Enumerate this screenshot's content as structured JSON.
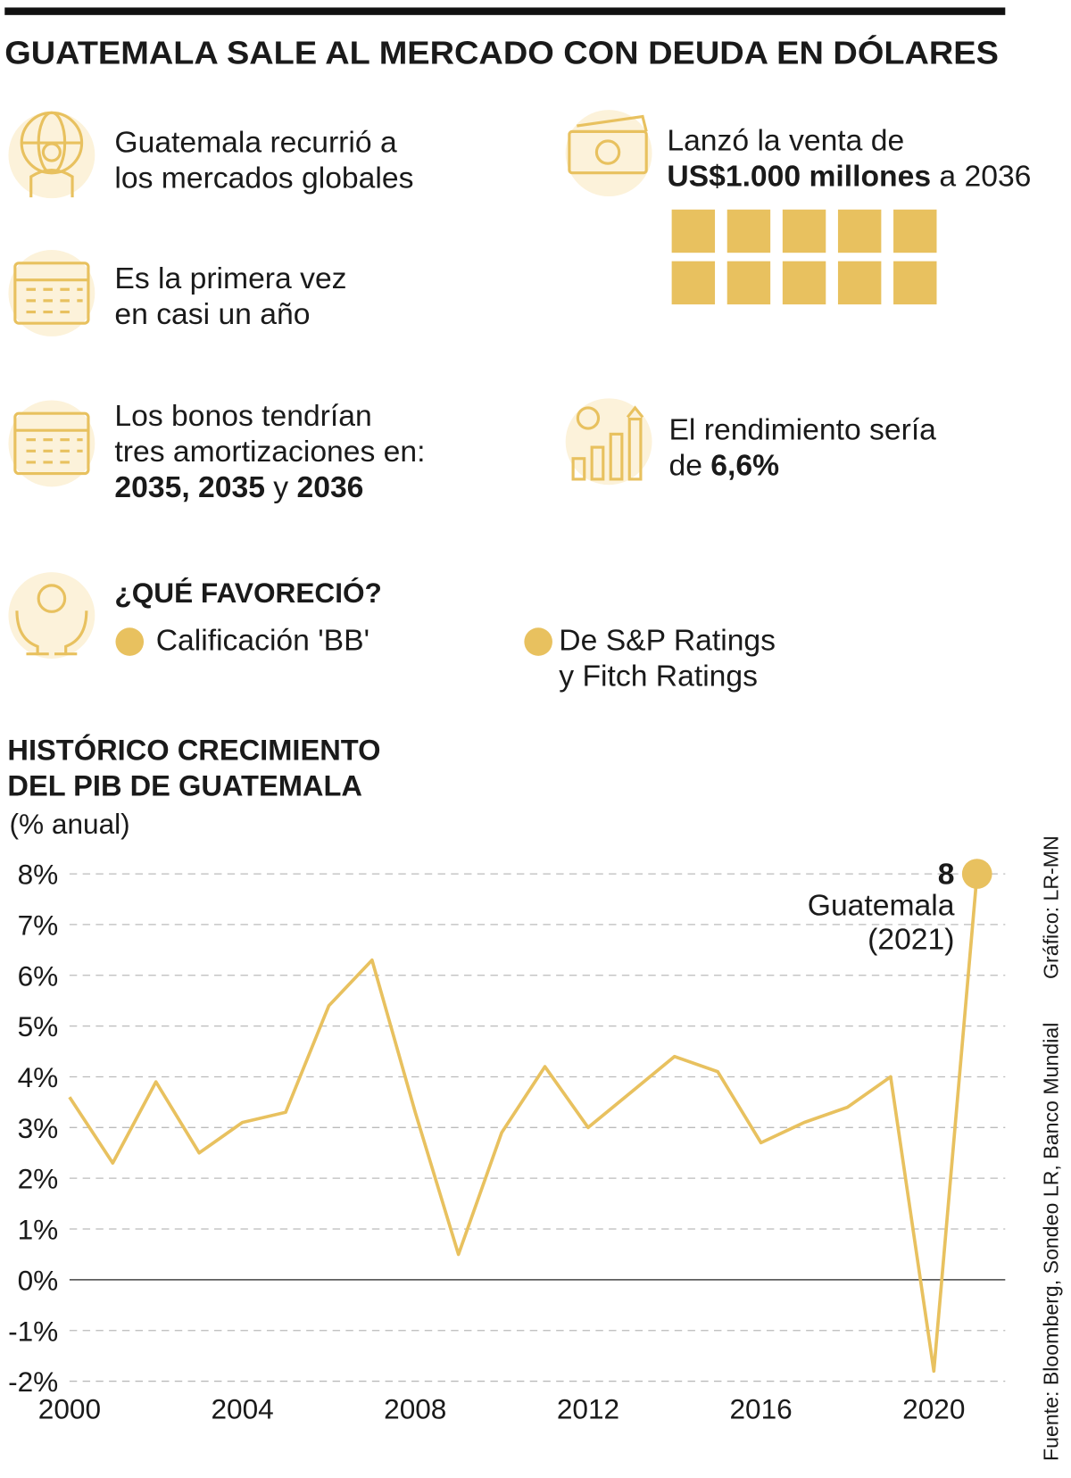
{
  "header": {
    "title": "GUATEMALA SALE AL MERCADO CON DEUDA EN DÓLARES"
  },
  "markets": {
    "lines": [
      "Guatemala recurrió a",
      "los mercados globales"
    ]
  },
  "first_time": {
    "lines": [
      "Es la primera vez",
      "en casi un año"
    ]
  },
  "bonds": {
    "lines": [
      "Los bonos tendrían",
      "tres amortizaciones en:"
    ],
    "years": "2035, 2035",
    "connector": "y",
    "last_year": "2036"
  },
  "sale": {
    "intro": "Lanzó la venta de",
    "amount": "US$1.000 millones",
    "tail": "a 2036"
  },
  "yield": {
    "intro": "El rendimiento sería",
    "prefix": "de",
    "rate": "6,6%"
  },
  "favor": {
    "heading": "¿QUÉ FAVORECIÓ?",
    "rating": "Calificación 'BB'",
    "agencies": [
      "De S&P Ratings",
      "y Fitch Ratings"
    ]
  },
  "chart_data": {
    "type": "line",
    "title": [
      "HISTÓRICO CRECIMIENTO",
      "DEL PIB DE GUATEMALA"
    ],
    "subtitle": "(% anual)",
    "x": [
      2000,
      2001,
      2002,
      2003,
      2004,
      2005,
      2006,
      2007,
      2008,
      2009,
      2010,
      2011,
      2012,
      2013,
      2014,
      2015,
      2016,
      2017,
      2018,
      2019,
      2020,
      2021
    ],
    "series": [
      {
        "name": "Guatemala",
        "color": "#e8c15f",
        "values": [
          3.6,
          2.3,
          3.9,
          2.5,
          3.1,
          3.3,
          5.4,
          6.3,
          3.3,
          0.5,
          2.9,
          4.2,
          3.0,
          3.7,
          4.4,
          4.1,
          2.7,
          3.1,
          3.4,
          4.0,
          -1.8,
          8.0
        ]
      }
    ],
    "annotation": {
      "label": "Guatemala",
      "period": "(2021)"
    },
    "xlim": [
      2000,
      2021
    ],
    "xticks": [
      2000,
      2004,
      2008,
      2012,
      2016,
      2020
    ],
    "ylim": [
      -2,
      8
    ],
    "yticks": [
      {
        "value": -2,
        "label": "-2%"
      },
      {
        "value": -1,
        "label": "-1%"
      },
      {
        "value": 0,
        "label": "0%"
      },
      {
        "value": 1,
        "label": "1%"
      },
      {
        "value": 2,
        "label": "2%"
      },
      {
        "value": 3,
        "label": "3%"
      },
      {
        "value": 4,
        "label": "4%"
      },
      {
        "value": 5,
        "label": "5%"
      },
      {
        "value": 6,
        "label": "6%"
      },
      {
        "value": 7,
        "label": "7%"
      },
      {
        "value": 8,
        "label": "8%"
      }
    ],
    "grid": true,
    "source": "Fuente: Bloomberg, Sondeo LR, Banco Mundial",
    "credit": "Gráfico: LR-MN"
  }
}
